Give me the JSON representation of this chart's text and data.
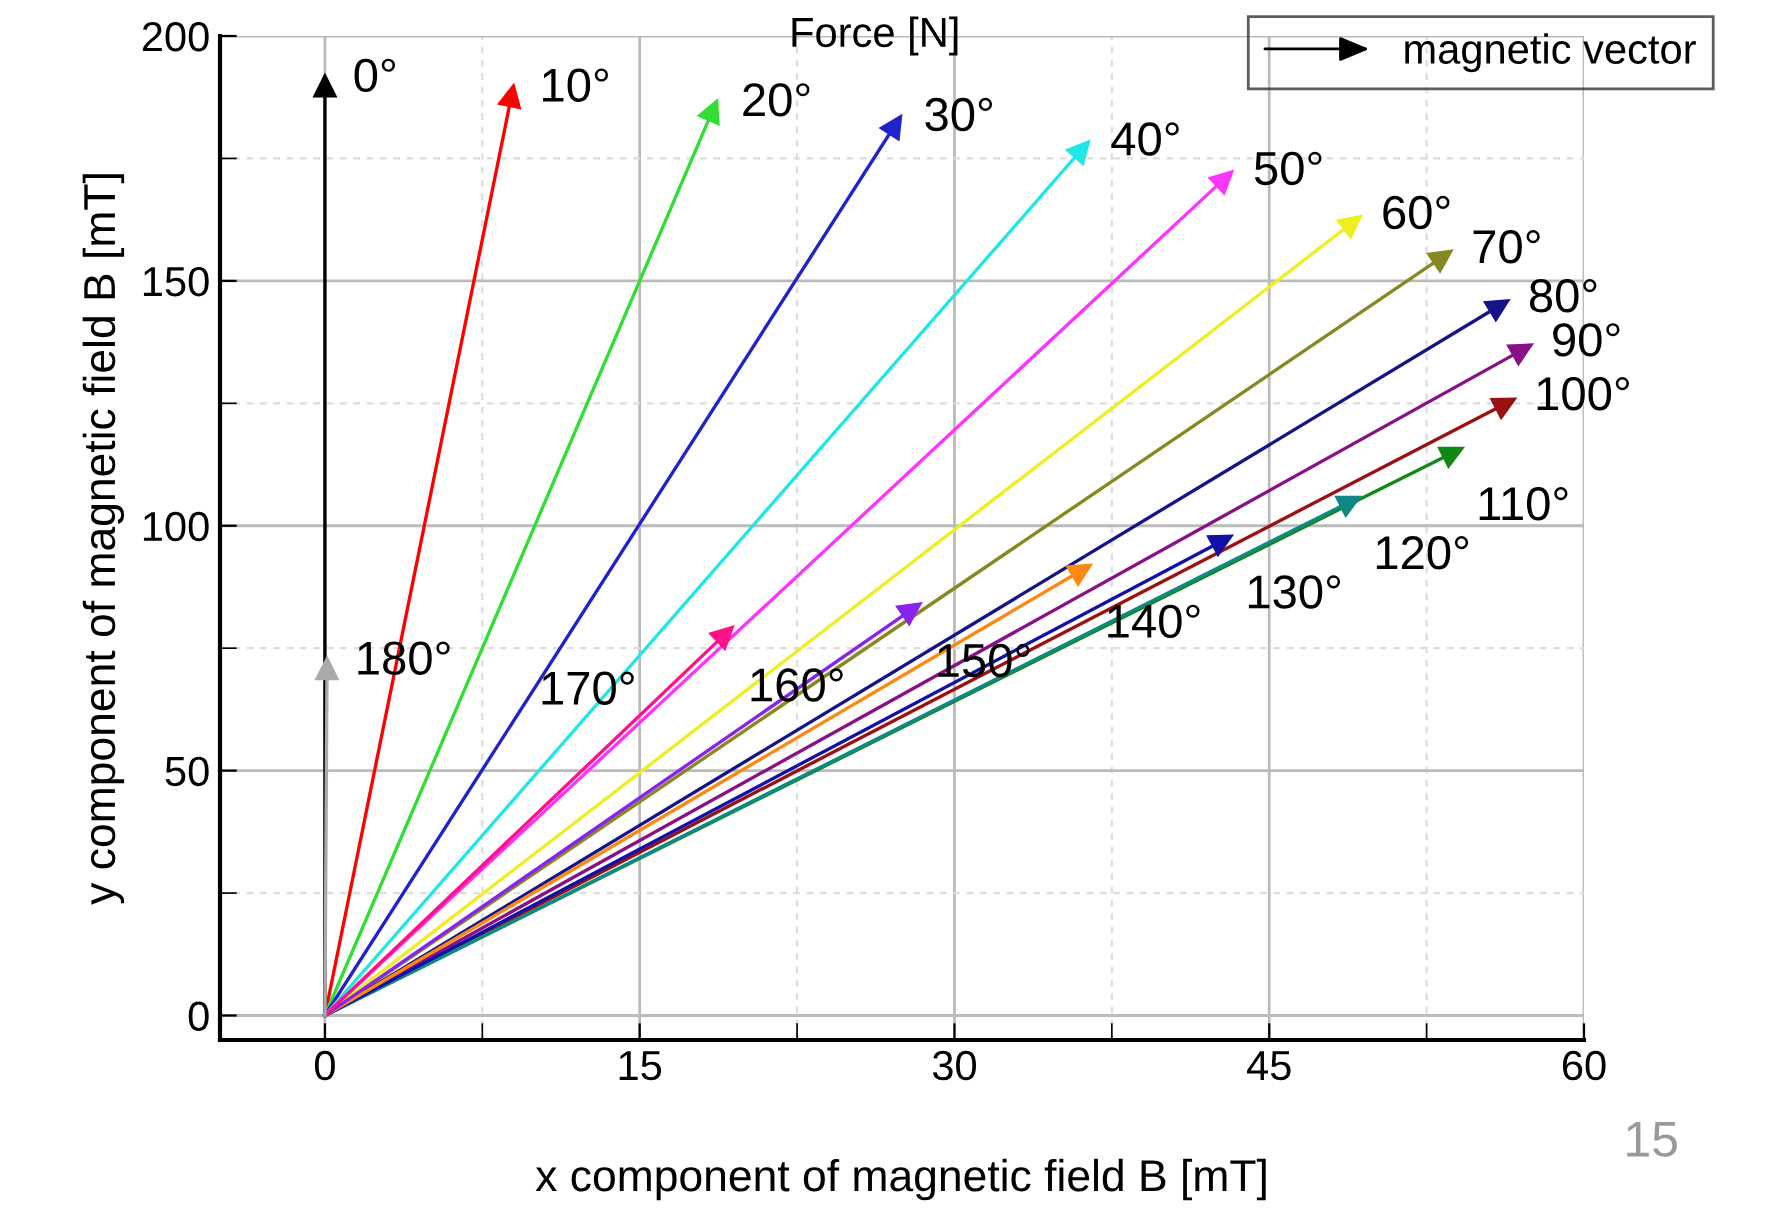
{
  "chart_data": {
    "type": "line",
    "title": "Force [N]",
    "xlabel": "x component of magnetic field B [mT]",
    "ylabel": "y component of magnetic field B [mT]",
    "legend_title": "magnetic vector",
    "legend": "top right",
    "grid": true,
    "marker": "triangle",
    "line_style": "solid",
    "xlim": [
      -5,
      60
    ],
    "xticks": [
      0,
      15,
      30,
      45,
      60
    ],
    "ylim": [
      -5,
      200
    ],
    "yticks": [
      0,
      50,
      100,
      150,
      200
    ],
    "series": [
      {
        "name": "0°",
        "color": "#000000",
        "x": [
          0,
          0
        ],
        "values": [
          0,
          190
        ]
      },
      {
        "name": "10°",
        "color": "#ff0000",
        "x": [
          0,
          8.9
        ],
        "values": [
          0,
          188
        ]
      },
      {
        "name": "20°",
        "color": "#33dd33",
        "x": [
          0,
          18.5
        ],
        "values": [
          0,
          185
        ]
      },
      {
        "name": "30°",
        "color": "#2222cc",
        "x": [
          0,
          27.2
        ],
        "values": [
          0,
          182
        ]
      },
      {
        "name": "40°",
        "color": "#22e6e6",
        "x": [
          0,
          36.1
        ],
        "values": [
          0,
          177
        ]
      },
      {
        "name": "50°",
        "color": "#ff33ff",
        "x": [
          0,
          42.9
        ],
        "values": [
          0,
          171
        ]
      },
      {
        "name": "60°",
        "color": "#eeee22",
        "x": [
          0,
          49
        ],
        "values": [
          0,
          162
        ]
      },
      {
        "name": "70°",
        "color": "#888822",
        "x": [
          0,
          53.3
        ],
        "values": [
          0,
          155
        ]
      },
      {
        "name": "80°",
        "color": "#141488",
        "x": [
          0,
          56
        ],
        "values": [
          0,
          145
        ]
      },
      {
        "name": "90°",
        "color": "#881188",
        "x": [
          0,
          57.1
        ],
        "values": [
          0,
          136
        ]
      },
      {
        "name": "100°",
        "color": "#991111",
        "x": [
          0,
          56.3
        ],
        "values": [
          0,
          125
        ]
      },
      {
        "name": "110°",
        "color": "#118811",
        "x": [
          0,
          53.8
        ],
        "values": [
          0,
          115
        ]
      },
      {
        "name": "120°",
        "color": "#118888",
        "x": [
          0,
          48.9
        ],
        "values": [
          0,
          105
        ]
      },
      {
        "name": "130°",
        "color": "#1111aa",
        "x": [
          0,
          42.8
        ],
        "values": [
          0,
          97
        ]
      },
      {
        "name": "140°",
        "color": "#ff8811",
        "x": [
          0,
          36.1
        ],
        "values": [
          0,
          91
        ]
      },
      {
        "name": "150°",
        "color": "#8822ee",
        "x": [
          0,
          28
        ],
        "values": [
          0,
          83
        ]
      },
      {
        "name": "160°",
        "color": "#ff1188",
        "x": [
          0,
          19.1
        ],
        "values": [
          0,
          78
        ]
      },
      {
        "name": "180°",
        "color": "#aaaaaa",
        "x": [
          0,
          0.1
        ],
        "values": [
          0,
          71
        ]
      }
    ],
    "annotations": [
      {
        "text": "170°",
        "x": 10.2,
        "y": 66
      },
      "15"
    ]
  }
}
